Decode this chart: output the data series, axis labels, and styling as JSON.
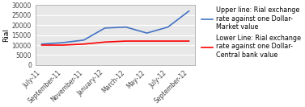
{
  "x_labels": [
    "July-11",
    "September-11",
    "November-11",
    "January-12",
    "March-12",
    "May-12",
    "July-12",
    "September-12"
  ],
  "upper_line": [
    10500,
    11200,
    12500,
    18500,
    19000,
    16000,
    19000,
    27000
  ],
  "lower_line": [
    10000,
    10000,
    10500,
    11500,
    12000,
    12000,
    12000,
    12000
  ],
  "upper_color": "#4472C4",
  "lower_color": "#FF0000",
  "upper_label": "Upper line: Rial exchange\nrate against one Dollar-\nMarket value",
  "lower_label": "Lower Line: Rial exchange\nrate against one Dollar-\nCentral bank value",
  "ylabel": "Rial",
  "ylim": [
    0,
    30000
  ],
  "yticks": [
    0,
    5000,
    10000,
    15000,
    20000,
    25000,
    30000
  ],
  "background_color": "#ffffff",
  "plot_bg_color": "#e8e8e8",
  "grid_color": "#ffffff",
  "legend_fontsize": 5.8,
  "axis_fontsize": 5.5,
  "ylabel_fontsize": 6.5
}
